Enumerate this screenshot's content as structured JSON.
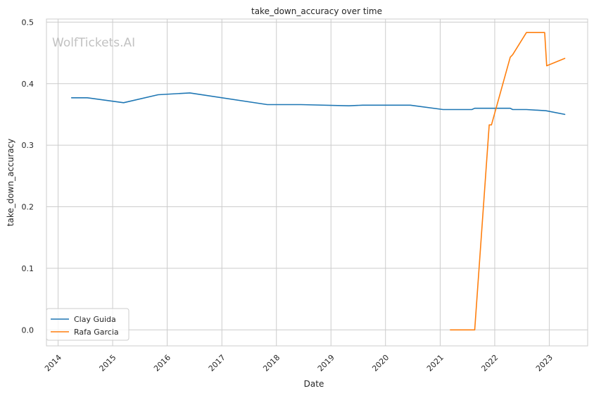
{
  "watermark": "WolfTickets.AI",
  "chart_data": {
    "type": "line",
    "title": "take_down_accuracy over time",
    "xlabel": "Date",
    "ylabel": "take_down_accuracy",
    "x_ticks": [
      "2014",
      "2015",
      "2016",
      "2017",
      "2018",
      "2019",
      "2020",
      "2021",
      "2022",
      "2023"
    ],
    "y_ticks": [
      "0.0",
      "0.1",
      "0.2",
      "0.3",
      "0.4",
      "0.5"
    ],
    "xlim": [
      "2013-10-15",
      "2023-09-15"
    ],
    "ylim": [
      -0.026,
      0.505
    ],
    "grid": true,
    "legend_position": "lower-left",
    "series": [
      {
        "name": "Clay Guida",
        "color": "#1f77b4",
        "points": [
          [
            "2014-04-01",
            0.377
          ],
          [
            "2014-07-15",
            0.377
          ],
          [
            "2015-03-15",
            0.369
          ],
          [
            "2015-11-01",
            0.382
          ],
          [
            "2016-06-01",
            0.385
          ],
          [
            "2017-11-01",
            0.366
          ],
          [
            "2018-06-15",
            0.366
          ],
          [
            "2019-05-01",
            0.364
          ],
          [
            "2019-08-01",
            0.365
          ],
          [
            "2020-06-15",
            0.365
          ],
          [
            "2021-01-20",
            0.358
          ],
          [
            "2021-08-01",
            0.358
          ],
          [
            "2021-08-20",
            0.36
          ],
          [
            "2022-04-15",
            0.36
          ],
          [
            "2022-05-01",
            0.358
          ],
          [
            "2022-08-01",
            0.358
          ],
          [
            "2022-12-10",
            0.356
          ],
          [
            "2023-04-15",
            0.35
          ]
        ]
      },
      {
        "name": "Rafa Garcia",
        "color": "#ff7f0e",
        "points": [
          [
            "2021-03-10",
            0.0
          ],
          [
            "2021-08-20",
            0.0
          ],
          [
            "2021-11-25",
            0.333
          ],
          [
            "2021-12-10",
            0.333
          ],
          [
            "2022-04-15",
            0.443
          ],
          [
            "2022-05-01",
            0.447
          ],
          [
            "2022-08-01",
            0.483
          ],
          [
            "2022-12-01",
            0.483
          ],
          [
            "2022-12-15",
            0.429
          ],
          [
            "2023-04-15",
            0.441
          ]
        ]
      }
    ]
  }
}
